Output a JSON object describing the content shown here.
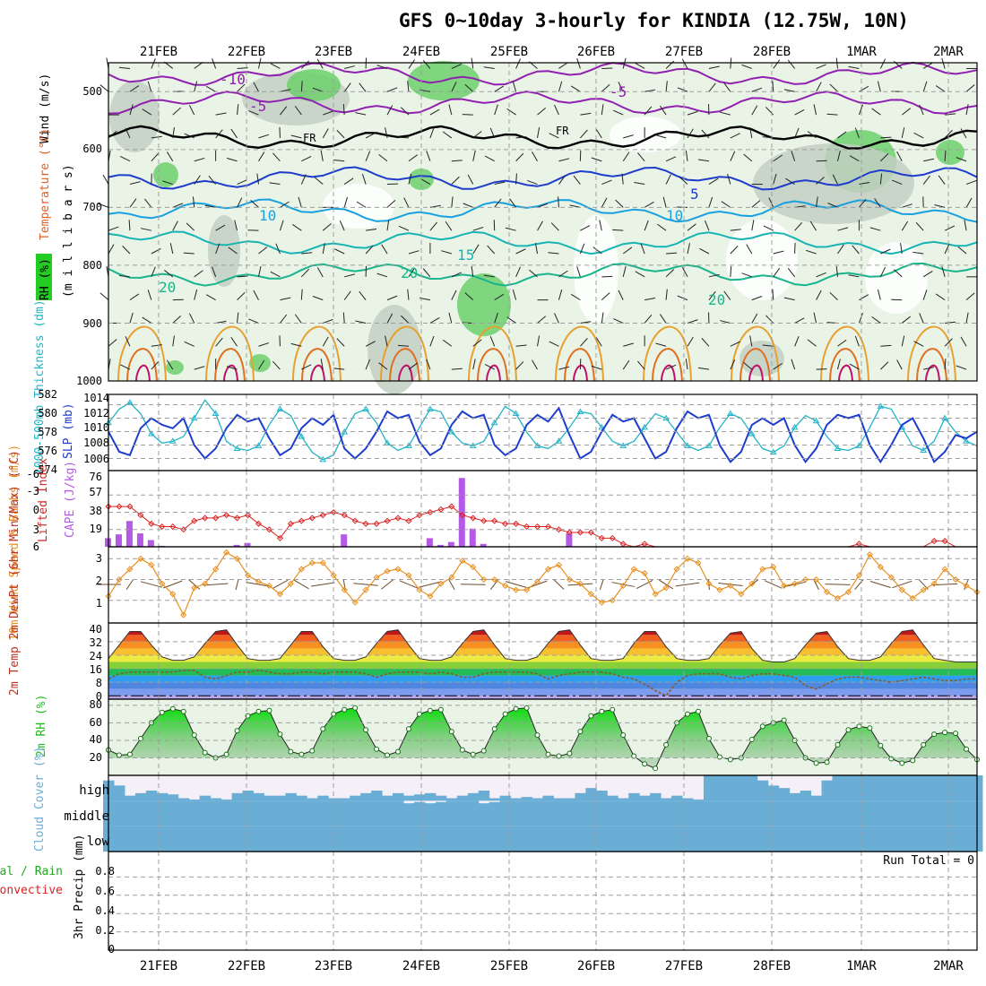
{
  "title": "GFS 0~10day 3-hourly for KINDIA (12.75W, 10N)",
  "dates": [
    "21FEB",
    "22FEB",
    "23FEB",
    "24FEB",
    "25FEB",
    "26FEB",
    "27FEB",
    "28FEB",
    "1MAR",
    "2MAR"
  ],
  "colors": {
    "rh": "#22cc22",
    "temp": "#e06020",
    "wind": "#000000",
    "slp": "#1e3ccd",
    "thickness": "#20b4c8",
    "lifted": "#dd2222",
    "cape": "#b45ae6",
    "wind10": "#e8901e",
    "cloud": "#6aaed6",
    "precip": "#22aa22",
    "convective": "#dd2222"
  },
  "chart_data": [
    {
      "id": "upper-air",
      "type": "heatmap",
      "ylabels": {
        "wind": "Wind (m/s)",
        "temperature": "Temperature (°C)",
        "rh": "RH (%)",
        "pressure": "(m i l l i b a r s)"
      },
      "yticks": [
        500,
        600,
        700,
        800,
        900,
        1000
      ],
      "ylim": [
        1000,
        450
      ],
      "contour_labels": [
        "-10",
        "-5",
        "-5",
        "FR",
        "FR",
        "5",
        "10",
        "10",
        "15",
        "20",
        "20",
        "20"
      ],
      "isotherms": [
        {
          "label": "-10",
          "p": 470
        },
        {
          "label": "-5",
          "p": 520
        },
        {
          "label": "0",
          "p": 580
        },
        {
          "label": "5",
          "p": 650
        },
        {
          "label": "10",
          "p": 705
        },
        {
          "label": "15",
          "p": 760
        },
        {
          "label": "20",
          "p": 815
        }
      ]
    },
    {
      "id": "slp-thickness",
      "type": "line",
      "ylabels": {
        "left": "1000-500mb Thickness (dm)",
        "right": "SLP (mb)"
      },
      "left_ticks": [
        574,
        576,
        578,
        580,
        582
      ],
      "right_ticks": [
        1006,
        1008,
        1010,
        1012,
        1014
      ],
      "series": [
        {
          "name": "SLP (mb)",
          "values": [
            1010.0,
            1007.0,
            1006.5,
            1010.5,
            1012.0,
            1011.0,
            1010.5,
            1012.0,
            1008.0,
            1006.0,
            1007.5,
            1010.5,
            1012.5,
            1011.5,
            1012.0,
            1009.0,
            1006.5,
            1007.5,
            1010.5,
            1012.0,
            1011.0,
            1012.5,
            1007.5,
            1006.0,
            1007.5,
            1010.0,
            1013.0,
            1012.0,
            1012.5,
            1008.5,
            1006.5,
            1007.5,
            1011.0,
            1013.0,
            1012.0,
            1012.5,
            1008.0,
            1006.5,
            1007.5,
            1011.0,
            1012.5,
            1011.5,
            1013.5,
            1009.5,
            1006.0,
            1007.0,
            1010.0,
            1012.5,
            1011.5,
            1012.0,
            1009.0,
            1006.0,
            1007.0,
            1010.5,
            1013.0,
            1012.0,
            1012.5,
            1008.0,
            1005.5,
            1007.0,
            1011.0,
            1012.0,
            1011.0,
            1012.0,
            1008.0,
            1005.5,
            1007.5,
            1011.0,
            1012.5,
            1012.0,
            1012.5,
            1008.0,
            1005.5,
            1008.0,
            1011.0,
            1012.0,
            1009.0,
            1005.5,
            1007.0,
            1009.5,
            1009.0,
            1010.0
          ]
        },
        {
          "name": "Thickness (dm)",
          "values": [
            579.0,
            580.5,
            581.2,
            580.0,
            577.8,
            576.8,
            577.0,
            577.5,
            579.5,
            581.5,
            580.0,
            577.0,
            576.2,
            576.0,
            576.5,
            578.8,
            580.5,
            579.8,
            577.5,
            575.8,
            575.0,
            575.5,
            578.0,
            580.0,
            580.5,
            579.0,
            576.8,
            576.0,
            576.5,
            578.5,
            580.5,
            580.2,
            578.0,
            576.8,
            576.5,
            577.0,
            579.0,
            580.8,
            580.0,
            578.0,
            576.5,
            576.2,
            577.0,
            578.5,
            580.2,
            580.0,
            578.5,
            577.0,
            576.5,
            577.0,
            578.5,
            580.0,
            579.5,
            578.0,
            576.5,
            576.0,
            576.5,
            578.5,
            580.0,
            579.5,
            577.8,
            576.2,
            575.8,
            576.5,
            578.5,
            579.8,
            579.2,
            577.5,
            576.2,
            576.0,
            576.5,
            578.5,
            580.8,
            580.5,
            578.5,
            576.5,
            576.0,
            577.0,
            579.5,
            578.0,
            577.0,
            576.5
          ]
        }
      ]
    },
    {
      "id": "cape-li",
      "type": "bar",
      "ylabels": {
        "left": "Lifted Index",
        "right": "CAPE (J/kg)"
      },
      "left_ticks": [
        "-3",
        "0",
        "3",
        "6",
        "-6"
      ],
      "right_ticks": [
        19,
        38,
        57,
        76
      ],
      "series": [
        {
          "name": "CAPE (J/kg)",
          "values": [
            9,
            13,
            27,
            14,
            7,
            1,
            0,
            0,
            0,
            0,
            0,
            0,
            2,
            4,
            0,
            0,
            0,
            0,
            0,
            0,
            0,
            0,
            13,
            0,
            0,
            0,
            0,
            0,
            0,
            0,
            9,
            2,
            5,
            72,
            19,
            3,
            0,
            0,
            0,
            0,
            0,
            0,
            0,
            14,
            0,
            0,
            0,
            0,
            0,
            0,
            0,
            0,
            0,
            0,
            0,
            0,
            0,
            0,
            0,
            0,
            0,
            0,
            0,
            0,
            0,
            0,
            0,
            0,
            0,
            0,
            0,
            0,
            0,
            0,
            0,
            0,
            0,
            0,
            0,
            0,
            0,
            0
          ]
        },
        {
          "name": "Lifted Index",
          "values": [
            -1.0,
            -1.0,
            -1.0,
            0.5,
            2.0,
            2.5,
            2.5,
            3.0,
            1.5,
            1.0,
            1.0,
            0.5,
            1.0,
            0.5,
            2.0,
            3.0,
            4.5,
            2.0,
            1.5,
            1.0,
            0.5,
            0.0,
            0.5,
            1.5,
            2.0,
            2.0,
            1.5,
            1.0,
            1.5,
            0.5,
            0.0,
            -0.5,
            -1.0,
            0.5,
            1.0,
            1.5,
            1.5,
            2.0,
            2.0,
            2.5,
            2.5,
            2.5,
            3.0,
            3.5,
            3.5,
            3.5,
            4.5,
            4.5,
            5.5,
            6.5,
            5.5,
            6.5,
            7.0,
            6.0,
            7.5,
            6.5,
            6.5,
            7.5,
            6.5,
            6.0,
            7.5,
            7.0,
            6.5,
            7.5,
            7.0,
            6.5,
            7.5,
            7.0,
            6.5,
            7.0,
            5.5,
            7.0,
            7.5,
            7.0,
            7.5,
            7.0,
            6.0,
            5.0,
            5.0,
            6.0,
            7.5,
            6.5
          ]
        }
      ]
    },
    {
      "id": "wind10m",
      "type": "line",
      "ylabels": {
        "left": "10m Wind Speed & Barbs (m/s)"
      },
      "yticks": [
        1,
        2,
        3
      ],
      "series": [
        {
          "name": "10m Wind Speed",
          "values": [
            1.2,
            2.0,
            2.5,
            3.0,
            2.7,
            1.8,
            1.3,
            0.3,
            1.6,
            1.8,
            2.5,
            3.3,
            3.0,
            2.2,
            1.9,
            1.7,
            1.3,
            1.8,
            2.5,
            2.8,
            2.8,
            2.2,
            1.5,
            0.9,
            1.5,
            2.1,
            2.4,
            2.5,
            2.2,
            1.5,
            1.2,
            1.8,
            2.1,
            2.9,
            2.6,
            2.0,
            2.0,
            1.7,
            1.5,
            1.5,
            1.9,
            2.5,
            2.7,
            2.0,
            1.8,
            1.3,
            0.9,
            1.0,
            1.7,
            2.5,
            2.3,
            1.3,
            1.6,
            2.5,
            3.0,
            2.8,
            1.8,
            1.5,
            1.7,
            1.3,
            1.8,
            2.5,
            2.6,
            1.7,
            1.8,
            2.0,
            2.0,
            1.4,
            1.1,
            1.4,
            2.2,
            3.2,
            2.6,
            2.1,
            1.5,
            1.1,
            1.5,
            1.8,
            2.5,
            2.0,
            1.7,
            1.4
          ]
        }
      ]
    },
    {
      "id": "temp2m",
      "type": "area",
      "ylabels": {
        "left": "2m Temp 2m DewPt (6hr Min/Max) (°C)"
      },
      "yticks": [
        0,
        8,
        16,
        24,
        32,
        40
      ],
      "series": [
        {
          "name": "2m Temp (°C)",
          "values": [
            22,
            30,
            38,
            38,
            30,
            23,
            21,
            21,
            23,
            31,
            38,
            39,
            30,
            22,
            21,
            21,
            22,
            30,
            38,
            38,
            29,
            22,
            21,
            21,
            23,
            31,
            38,
            39,
            30,
            22,
            21,
            21,
            23,
            31,
            38,
            39,
            30,
            22,
            21,
            21,
            23,
            31,
            38,
            39,
            30,
            22,
            21,
            21,
            22,
            31,
            38,
            38,
            29,
            22,
            21,
            21,
            22,
            30,
            37,
            38,
            28,
            21,
            20,
            20,
            22,
            30,
            37,
            38,
            29,
            22,
            21,
            21,
            23,
            31,
            38,
            39,
            30,
            22,
            21,
            20,
            20,
            20
          ]
        },
        {
          "name": "2m DewPt (°C)",
          "values": [
            10,
            13,
            14,
            14,
            14,
            14,
            14,
            15,
            15,
            11,
            10,
            12,
            14,
            14,
            15,
            14,
            13,
            13,
            14,
            14,
            13,
            14,
            14,
            14,
            13,
            11,
            13,
            14,
            14,
            14,
            13,
            14,
            13,
            11,
            11,
            13,
            14,
            14,
            14,
            14,
            13,
            10,
            12,
            13,
            14,
            14,
            14,
            13,
            11,
            10,
            7,
            3,
            0,
            8,
            12,
            13,
            13,
            13,
            11,
            10,
            12,
            13,
            13,
            12,
            11,
            6,
            4,
            7,
            10,
            11,
            11,
            10,
            9,
            8,
            9,
            10,
            11,
            10,
            9,
            9,
            10,
            10
          ]
        }
      ]
    },
    {
      "id": "rh2m",
      "type": "area",
      "ylabels": {
        "left": "2m RH (%)"
      },
      "yticks": [
        20,
        40,
        60,
        80
      ],
      "series": [
        {
          "name": "2m RH (%)",
          "values": [
            29,
            23,
            24,
            42,
            60,
            72,
            76,
            73,
            46,
            26,
            20,
            24,
            51,
            68,
            73,
            74,
            47,
            27,
            24,
            28,
            53,
            70,
            75,
            77,
            52,
            30,
            23,
            27,
            53,
            70,
            74,
            75,
            50,
            29,
            24,
            28,
            53,
            70,
            76,
            77,
            46,
            24,
            22,
            25,
            50,
            68,
            73,
            75,
            46,
            22,
            13,
            8,
            35,
            60,
            70,
            73,
            42,
            21,
            18,
            20,
            41,
            56,
            60,
            63,
            40,
            20,
            14,
            15,
            35,
            52,
            56,
            54,
            34,
            19,
            14,
            17,
            35,
            47,
            49,
            48,
            30,
            18
          ]
        }
      ]
    },
    {
      "id": "cloud",
      "type": "bar",
      "ylabels": {
        "left": "Cloud Cover (%)"
      },
      "levels": [
        "high",
        "middle",
        "low"
      ],
      "series": [
        {
          "name": "high",
          "values": [
            80,
            60,
            20,
            30,
            40,
            30,
            25,
            10,
            5,
            20,
            10,
            5,
            30,
            40,
            30,
            20,
            20,
            30,
            20,
            10,
            20,
            10,
            10,
            20,
            30,
            40,
            20,
            30,
            20,
            25,
            30,
            20,
            10,
            20,
            30,
            40,
            10,
            20,
            10,
            15,
            10,
            20,
            10,
            10,
            30,
            50,
            40,
            20,
            10,
            30,
            20,
            30,
            10,
            20,
            10,
            5,
            100,
            100,
            100,
            100,
            100,
            80,
            60,
            50,
            30,
            40,
            20,
            80,
            100,
            100,
            100,
            100,
            100,
            100,
            100,
            100,
            100,
            100,
            100,
            100,
            100,
            100
          ]
        },
        {
          "name": "middle",
          "values": [
            100,
            100,
            100,
            100,
            100,
            100,
            100,
            100,
            100,
            100,
            100,
            100,
            100,
            100,
            100,
            100,
            100,
            100,
            100,
            100,
            100,
            100,
            100,
            100,
            100,
            100,
            100,
            100,
            90,
            95,
            90,
            95,
            100,
            100,
            100,
            90,
            95,
            100,
            100,
            100,
            100,
            100,
            100,
            100,
            100,
            100,
            100,
            100,
            100,
            100,
            100,
            100,
            100,
            100,
            100,
            100,
            100,
            100,
            100,
            100,
            100,
            100,
            100,
            100,
            100,
            100,
            100,
            100,
            100,
            100,
            100,
            100,
            100,
            100,
            100,
            100,
            100,
            100,
            100,
            100,
            100,
            100
          ]
        },
        {
          "name": "low",
          "values": [
            100,
            100,
            100,
            100,
            100,
            100,
            100,
            100,
            100,
            100,
            100,
            100,
            100,
            100,
            100,
            100,
            100,
            100,
            100,
            100,
            100,
            100,
            100,
            100,
            100,
            100,
            100,
            100,
            100,
            100,
            100,
            100,
            100,
            100,
            100,
            100,
            100,
            100,
            100,
            100,
            100,
            100,
            100,
            100,
            100,
            100,
            100,
            100,
            100,
            100,
            100,
            100,
            100,
            100,
            100,
            100,
            100,
            100,
            100,
            100,
            100,
            100,
            100,
            100,
            100,
            100,
            100,
            100,
            100,
            100,
            100,
            100,
            100,
            100,
            100,
            100,
            100,
            100,
            100,
            100,
            100,
            100
          ]
        }
      ]
    },
    {
      "id": "precip",
      "type": "bar",
      "ylabels": {
        "left": "3hr Precip (mm)",
        "legend_total": "Total / Rain",
        "legend_conv": "Convective"
      },
      "yticks": [
        "0",
        "0.2",
        "0.4",
        "0.6",
        "0.8"
      ],
      "ylim": [
        0,
        1
      ],
      "annotation": "Run Total = 0",
      "series": [
        {
          "name": "Total / Rain",
          "values": []
        },
        {
          "name": "Convective",
          "values": []
        }
      ]
    }
  ]
}
